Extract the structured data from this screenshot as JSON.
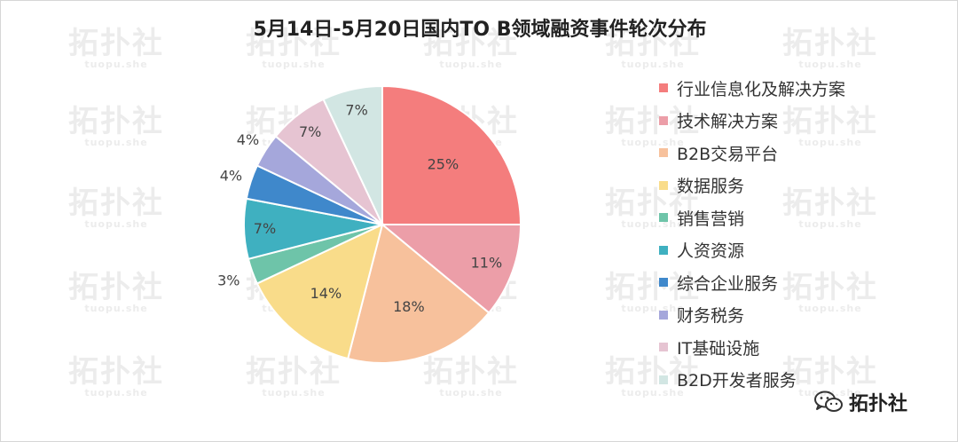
{
  "chart_data": {
    "type": "pie",
    "title": "5月14日-5月20日国内TO B领域融资事件轮次分布",
    "slices": [
      {
        "label": "行业信息化及解决方案",
        "value": 25,
        "data_label": "25%",
        "color": "#f47d7d"
      },
      {
        "label": "技术解决方案",
        "value": 11,
        "data_label": "11%",
        "color": "#ec9ea8"
      },
      {
        "label": "B2B交易平台",
        "value": 18,
        "data_label": "18%",
        "color": "#f7c19c"
      },
      {
        "label": "数据服务",
        "value": 14,
        "data_label": "14%",
        "color": "#f9dc8a"
      },
      {
        "label": "销售营销",
        "value": 3,
        "data_label": "3%",
        "color": "#6ec4a9"
      },
      {
        "label": "人资资源",
        "value": 7,
        "data_label": "7%",
        "color": "#3fb0c0"
      },
      {
        "label": "综合企业服务",
        "value": 4,
        "data_label": "4%",
        "color": "#3f88cb"
      },
      {
        "label": "财务税务",
        "value": 4,
        "data_label": "4%",
        "color": "#a5a7db"
      },
      {
        "label": "IT基础设施",
        "value": 7,
        "data_label": "7%",
        "color": "#e6c4d2"
      },
      {
        "label": "B2D开发者服务",
        "value": 7,
        "data_label": "7%",
        "color": "#d2e6e3"
      }
    ],
    "legend_position": "right"
  },
  "watermark": {
    "text": "拓扑社",
    "subtext": "tuopu.she"
  },
  "brand": {
    "icon": "wechat-icon",
    "name": "拓扑社"
  }
}
